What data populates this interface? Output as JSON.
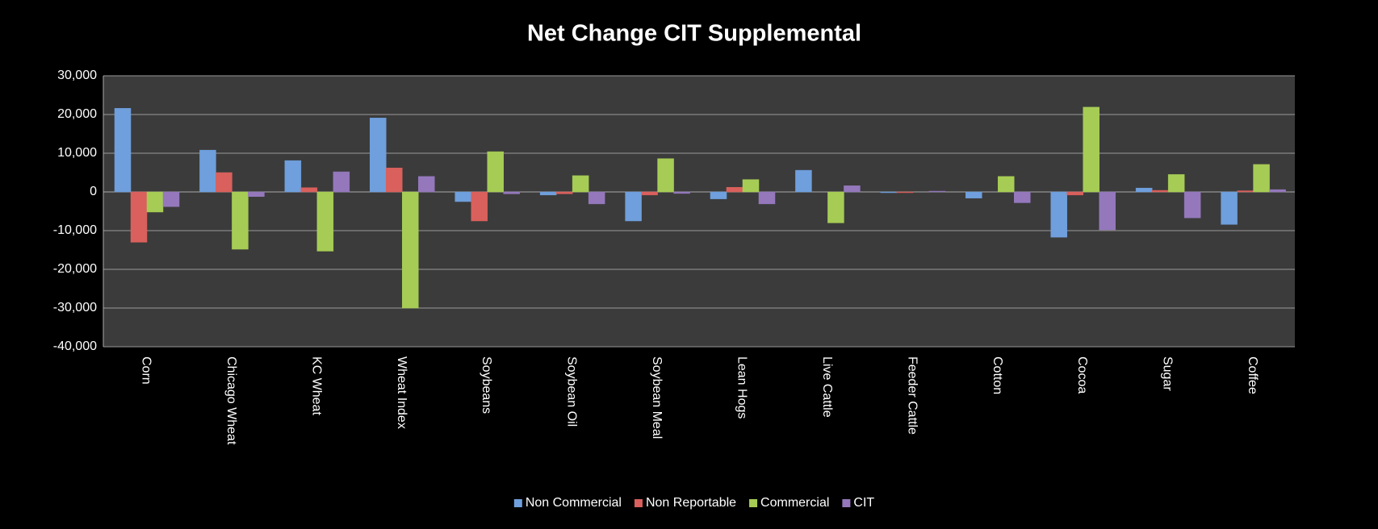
{
  "chart_data": {
    "type": "bar",
    "title": "Net Change CIT Supplemental",
    "categories": [
      "Corn",
      "Chicago Wheat",
      "KC Wheat",
      "Wheat Index",
      "Soybeans",
      "Soybean Oil",
      "Soybean Meal",
      "Lean Hogs",
      "Live Cattle",
      "Feeder Cattle",
      "Cotton",
      "Cocoa",
      "Sugar",
      "Coffee"
    ],
    "series": [
      {
        "name": "Non Commercial",
        "color": "#6f9fdc",
        "values": [
          21600,
          10800,
          8100,
          19100,
          -2500,
          -800,
          -7500,
          -1800,
          5600,
          -200,
          -1600,
          -11700,
          1000,
          -8400
        ]
      },
      {
        "name": "Non Reportable",
        "color": "#d9605c",
        "values": [
          -13000,
          5000,
          1100,
          6200,
          -7500,
          -500,
          -800,
          1200,
          0,
          -200,
          0,
          -800,
          400,
          300
        ]
      },
      {
        "name": "Commercial",
        "color": "#a6cc55",
        "values": [
          -5200,
          -14800,
          -15300,
          -30000,
          10400,
          4200,
          8600,
          3200,
          -8000,
          0,
          4000,
          21900,
          4500,
          7100
        ]
      },
      {
        "name": "CIT",
        "color": "#9478bb",
        "values": [
          -3800,
          -1200,
          5200,
          4000,
          -500,
          -3100,
          -400,
          -3100,
          1600,
          200,
          -2800,
          -9800,
          -6700,
          600
        ]
      }
    ],
    "ylim": [
      -40000,
      30000
    ],
    "yticks": [
      {
        "value": -40000,
        "label": "-40,000"
      },
      {
        "value": -30000,
        "label": "-30,000"
      },
      {
        "value": -20000,
        "label": "-20,000"
      },
      {
        "value": -10000,
        "label": "-10,000"
      },
      0,
      {
        "value": 10000,
        "label": "10,000"
      },
      {
        "value": 20000,
        "label": "20,000"
      },
      {
        "value": 30000,
        "label": "30,000"
      }
    ],
    "grid": true,
    "legend": "bottom"
  }
}
